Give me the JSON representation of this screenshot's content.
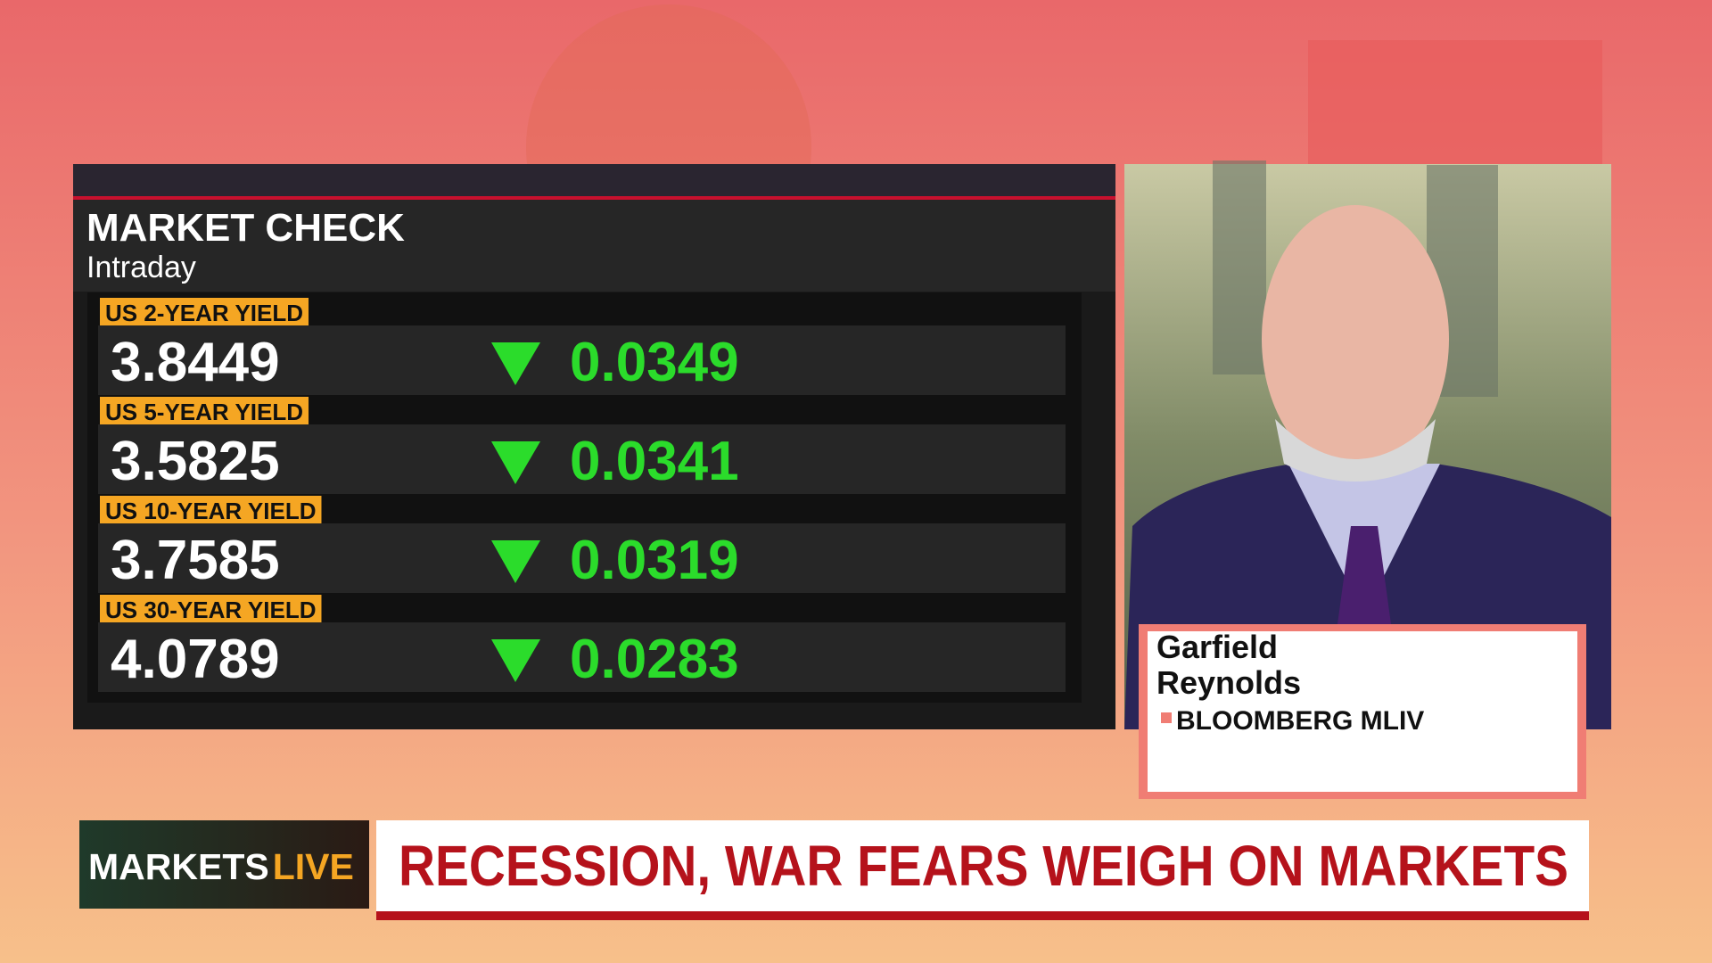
{
  "panel": {
    "title": "MARKET CHECK",
    "subtitle": "Intraday",
    "rows": [
      {
        "label": "US 2-YEAR YIELD",
        "value": 3.8449,
        "change": 0.0349
      },
      {
        "label": "US 5-YEAR YIELD",
        "value": 3.5825,
        "change": 0.0341
      },
      {
        "label": "US 10-YEAR YIELD",
        "value": 3.7585,
        "change": 0.0319
      },
      {
        "label": "US 30-YEAR YIELD",
        "value": 4.0789,
        "change": 0.0283
      }
    ]
  },
  "guest": {
    "name_lines": [
      "Garfield",
      "Reynolds"
    ],
    "affiliation": "BLOOMBERG MLIV"
  },
  "lower_third": {
    "brand": [
      "MARKETS",
      "LIVE"
    ],
    "headline": "RECESSION, WAR FEARS WEIGH ON MARKETS"
  }
}
